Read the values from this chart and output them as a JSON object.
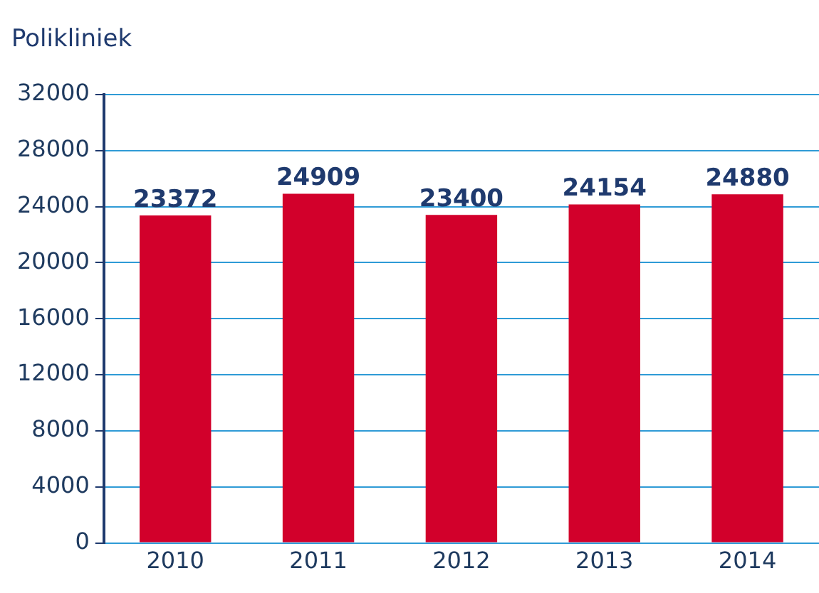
{
  "chart_data": {
    "type": "bar",
    "title": "Polikliniek",
    "categories": [
      "2010",
      "2011",
      "2012",
      "2013",
      "2014"
    ],
    "values": [
      23372,
      24909,
      23400,
      24154,
      24880
    ],
    "color": "#d2002b",
    "ylim": [
      0,
      32000
    ],
    "yticks": [
      0,
      4000,
      8000,
      12000,
      16000,
      20000,
      24000,
      28000,
      32000
    ],
    "grid": "y",
    "data_labels": true,
    "legend": false
  }
}
